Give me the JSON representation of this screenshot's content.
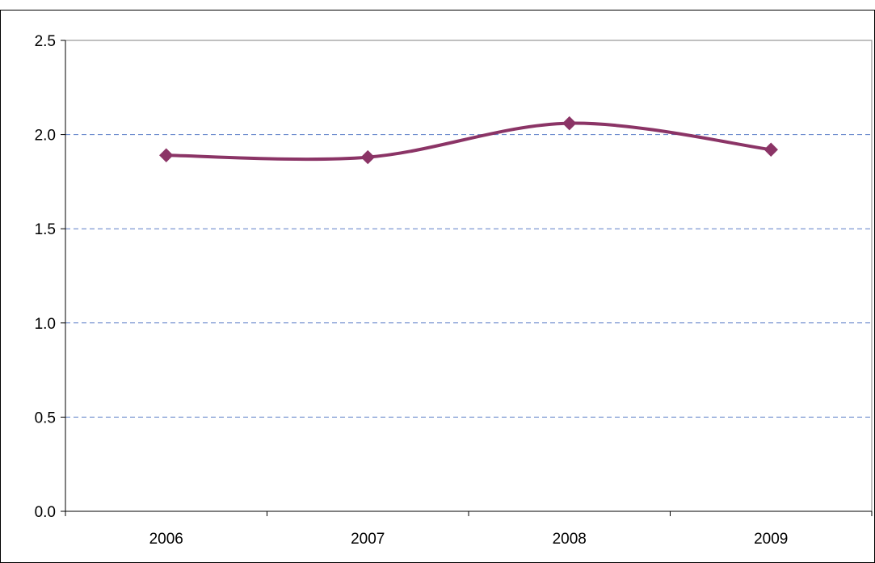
{
  "chart_data": {
    "type": "line",
    "title": "",
    "xlabel": "",
    "ylabel": "",
    "categories": [
      "2006",
      "2007",
      "2008",
      "2009"
    ],
    "series": [
      {
        "values": [
          1.89,
          1.88,
          2.06,
          1.92
        ],
        "color": "#8b3466",
        "marker": "diamond",
        "smooth": true
      }
    ],
    "ylim": [
      0,
      2.5
    ],
    "yticks": [
      "0.0",
      "0.5",
      "1.0",
      "1.5",
      "2.0",
      "2.5"
    ],
    "grid": "horizontal dashed",
    "legend": "none",
    "colors": {
      "grid": "#5b7fc7",
      "axis": "#000000",
      "plot_border": "#808080",
      "series": "#8b3466"
    }
  }
}
